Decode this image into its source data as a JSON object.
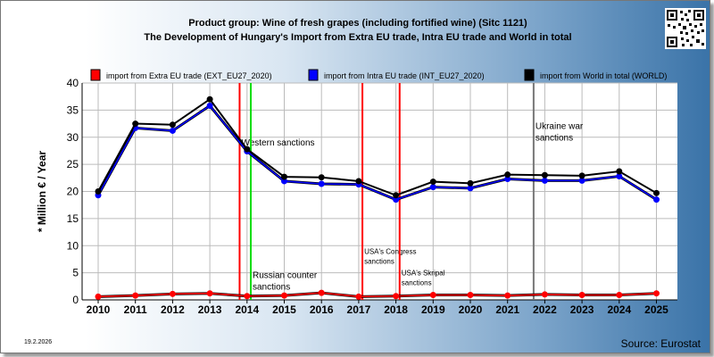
{
  "header": {
    "title_line1": "Product group: Wine of fresh grapes (including fortified wine) (Sitc 1121)",
    "title_line2": "The Development of Hungary's Import from Extra EU trade, Intra EU trade and World in total"
  },
  "footer": {
    "date": "19.2.2026",
    "source": "Source: Eurostat"
  },
  "chart_data": {
    "type": "line",
    "ylabel": "* Million € / Year",
    "xlabel": "",
    "ylim": [
      0,
      40
    ],
    "yticks": [
      0,
      5,
      10,
      15,
      20,
      25,
      30,
      35,
      40
    ],
    "x": [
      "2010",
      "2011",
      "2012",
      "2013",
      "2014",
      "2015",
      "2016",
      "2017",
      "2018",
      "2019",
      "2020",
      "2021",
      "2022",
      "2023",
      "2024",
      "2025"
    ],
    "grid": true,
    "legend_position": "top",
    "series": [
      {
        "name": "import from Extra EU trade (EXT_EU27_2020)",
        "color": "#ff0000",
        "values": [
          0.6,
          0.8,
          1.1,
          1.2,
          0.7,
          0.8,
          1.3,
          0.6,
          0.7,
          0.9,
          0.9,
          0.8,
          1.0,
          0.9,
          0.9,
          1.2
        ]
      },
      {
        "name": "import from Intra EU trade (INT_EU27_2020)",
        "color": "#0000ff",
        "values": [
          19.3,
          31.7,
          31.2,
          35.8,
          27.4,
          21.9,
          21.4,
          21.3,
          18.5,
          20.8,
          20.6,
          22.3,
          22.0,
          22.0,
          22.8,
          18.5
        ]
      },
      {
        "name": "import from World in total (WORLD)",
        "color": "#000000",
        "values": [
          20.0,
          32.5,
          32.3,
          37.0,
          27.8,
          22.7,
          22.6,
          21.9,
          19.3,
          21.8,
          21.5,
          23.1,
          23.0,
          22.9,
          23.7,
          19.7
        ]
      }
    ],
    "annotations": [
      {
        "x": 13.8,
        "color": "#ff0000",
        "text_lines": [
          "Western sanctions"
        ],
        "label_y": 28.5
      },
      {
        "x": 14.1,
        "color": "#00dd00",
        "text_lines": [
          "Russian counter",
          "sanctions"
        ],
        "label_y": 4.0
      },
      {
        "x": 17.1,
        "color": "#ff0000",
        "text_lines": [
          "USA's Congress",
          "sanctions"
        ],
        "label_y": 8.5,
        "small": true
      },
      {
        "x": 18.1,
        "color": "#ff0000",
        "text_lines": [
          "USA's Skripal",
          "sanctions"
        ],
        "label_y": 4.5,
        "small": true
      },
      {
        "x": 21.7,
        "color": "#777777",
        "text_lines": [
          "Ukraine war",
          "sanctions"
        ],
        "label_y": 31.5
      }
    ]
  }
}
